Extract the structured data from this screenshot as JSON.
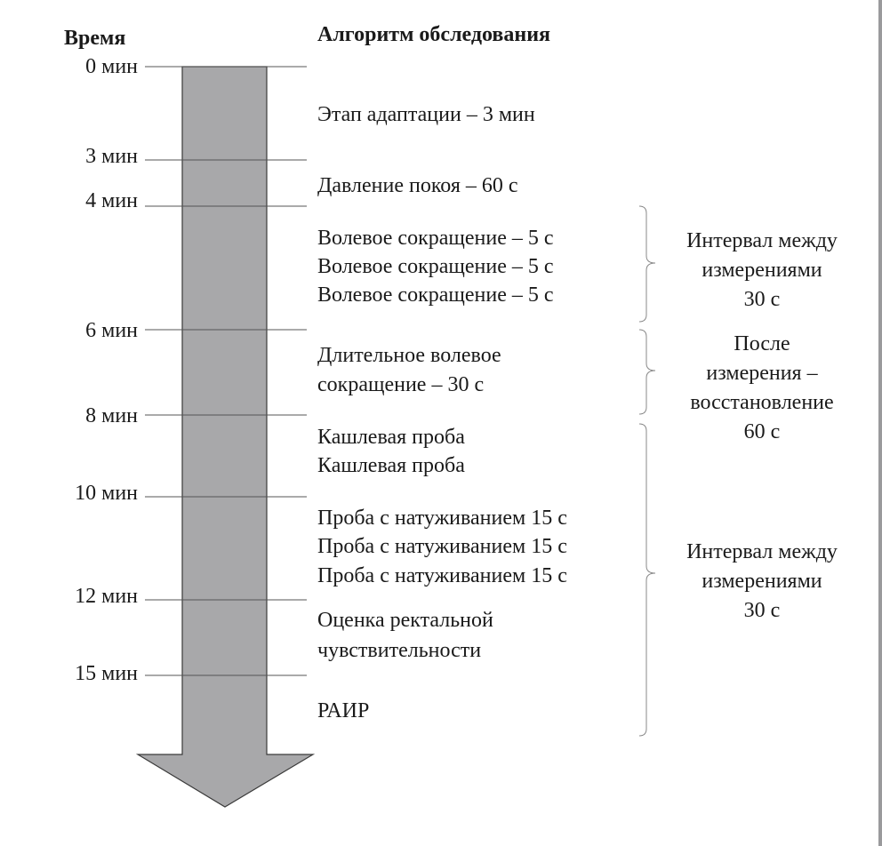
{
  "header": {
    "time": "Время",
    "algorithm": "Алгоритм обследования"
  },
  "timeline": [
    "0 мин",
    "3 мин",
    "4 мин",
    "6 мин",
    "8 мин",
    "10 мин",
    "12 мин",
    "15 мин"
  ],
  "steps": [
    "Этап адаптации – 3 мин",
    "Давление покоя – 60 с",
    "Волевое сокращение – 5 с",
    "Волевое сокращение – 5 с",
    "Волевое сокращение – 5 с",
    "Длительное волевое",
    "сокращение – 30 с",
    "Кашлевая проба",
    "Кашлевая проба",
    "Проба с натуживанием 15 с",
    "Проба с натуживанием 15 с",
    "Проба с натуживанием 15 с",
    "Оценка ректальной",
    "чувствительности",
    "РАИР"
  ],
  "notes": [
    {
      "lines": [
        "Интервал между",
        "измерениями",
        "30 с"
      ]
    },
    {
      "lines": [
        "После",
        "измерения –",
        "восстановление",
        "60 с"
      ]
    },
    {
      "lines": [
        "Интервал между",
        "измерениями",
        "30 с"
      ]
    }
  ],
  "colors": {
    "arrow_fill": "#a8a8aa",
    "arrow_stroke": "#3a3a3a",
    "line": "#555555"
  }
}
